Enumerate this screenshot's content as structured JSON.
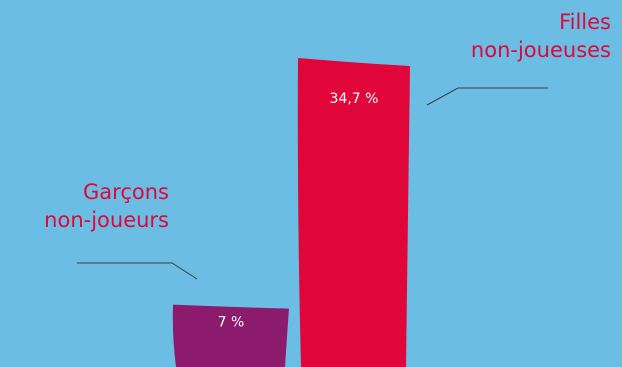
{
  "colors": {
    "background": "#6bbde3",
    "label_text": "#e0063a",
    "leader_line": "#3c3c3c",
    "value_text": "#ffffff"
  },
  "chart_data": {
    "type": "bar",
    "categories": [
      "Garçons\nnon-joueurs",
      "Filles\nnon-joueuses"
    ],
    "values": [
      7,
      34.7
    ],
    "value_labels": [
      "7 %",
      "34,7 %"
    ],
    "bar_colors": [
      "#8c1b6e",
      "#e0063a"
    ],
    "ylim": [
      0,
      36.5
    ],
    "unit": "%",
    "grid": false,
    "legend": "none"
  }
}
